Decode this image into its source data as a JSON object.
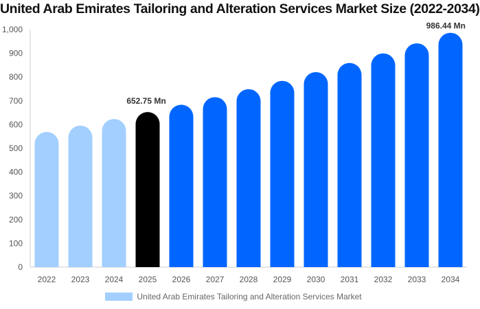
{
  "chart_data": {
    "type": "bar",
    "title": "United Arab Emirates Tailoring and Alteration Services Market Size (2022-2034)",
    "categories": [
      "2022",
      "2023",
      "2024",
      "2025",
      "2026",
      "2027",
      "2028",
      "2029",
      "2030",
      "2031",
      "2032",
      "2033",
      "2034"
    ],
    "series": [
      {
        "name": "United Arab Emirates Tailoring and Alteration Services Market",
        "values": [
          568.9,
          595.6,
          623.5,
          652.75,
          683.4,
          715.4,
          749.0,
          784.1,
          820.9,
          859.4,
          899.7,
          941.9,
          986.44
        ]
      }
    ],
    "data_labels": [
      {
        "category": "2025",
        "text": "652.75 Mn"
      },
      {
        "category": "2034",
        "text": "986.44 Mn"
      }
    ],
    "ylim": [
      0,
      1000
    ],
    "yticks": [
      "0",
      "100",
      "200",
      "300",
      "400",
      "500",
      "600",
      "700",
      "800",
      "900",
      "1,000"
    ],
    "grid": false,
    "legend_position": "bottom",
    "colors": {
      "historical": "#a3cfff",
      "base_year": "#000000",
      "forecast": "#0066ff"
    }
  }
}
